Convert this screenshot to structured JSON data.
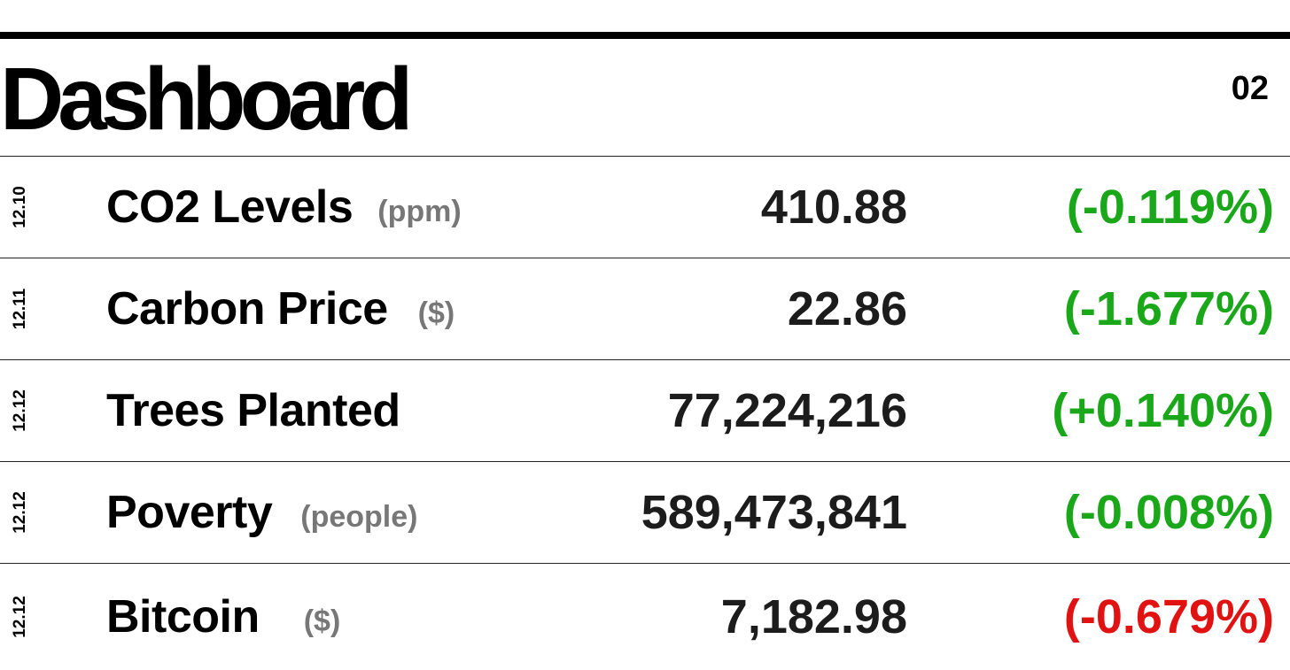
{
  "header": {
    "title": "Dashboard",
    "page_number": "02"
  },
  "colors": {
    "green": "#1aa81a",
    "red": "#e01212",
    "unit_gray": "#777777"
  },
  "rows": [
    {
      "date": "12.10",
      "label": "CO2 Levels",
      "unit": "(ppm)",
      "value": "410.88",
      "change": "(-0.119%)",
      "change_color": "green"
    },
    {
      "date": "12.11",
      "label": "Carbon Price",
      "unit": "($)",
      "value": "22.86",
      "change": "(-1.677%)",
      "change_color": "green"
    },
    {
      "date": "12.12",
      "label": "Trees Planted",
      "unit": "",
      "value": "77,224,216",
      "change": "(+0.140%)",
      "change_color": "green"
    },
    {
      "date": "12.12",
      "label": "Poverty",
      "unit": "(people)",
      "value": "589,473,841",
      "change": "(-0.008%)",
      "change_color": "green"
    },
    {
      "date": "12.12",
      "label": "Bitcoin",
      "unit": "($)",
      "value": "7,182.98",
      "change": "(-0.679%)",
      "change_color": "red"
    }
  ]
}
